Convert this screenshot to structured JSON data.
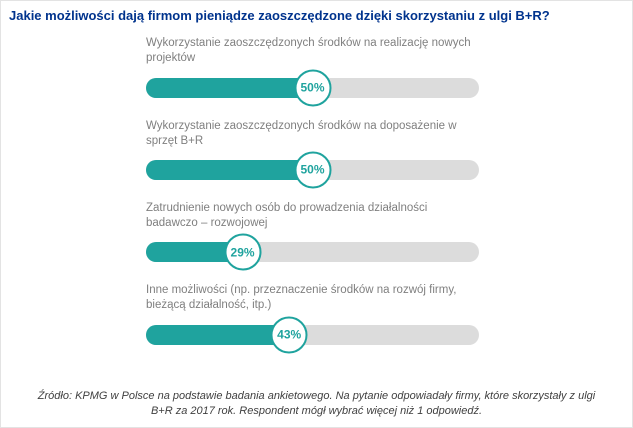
{
  "header": {
    "title": "Jakie możliwości dają firmom pieniądze zaoszczędzone dzięki skorzystaniu z ulgi B+R?"
  },
  "chart_data": {
    "type": "bar",
    "orientation": "horizontal",
    "title": "Jakie możliwości dają firmom pieniądze zaoszczędzone dzięki skorzystaniu z ulgi B+R?",
    "xlim": [
      0,
      100
    ],
    "grid": false,
    "legend": "none",
    "colors": {
      "bar": "#1FA39E",
      "track": "#DCDCDC",
      "title": "#00338D",
      "label": "#7F7F7F"
    },
    "categories": [
      "Wykorzystanie zaoszczędzonych środków na realizację nowych projektów",
      "Wykorzystanie zaoszczędzonych środków na doposażenie w sprzęt B+R",
      "Zatrudnienie nowych osób do prowadzenia działalności badawczo – rozwojowej",
      "Inne możliwości (np. przeznaczenie środków na rozwój firmy, bieżącą działalność, itp.)"
    ],
    "values": [
      50,
      50,
      29,
      43
    ],
    "rows": [
      {
        "label": "Wykorzystanie zaoszczędzonych środków na realizację nowych projektów",
        "value": 50,
        "display": "50%"
      },
      {
        "label": "Wykorzystanie zaoszczędzonych środków na doposażenie w sprzęt B+R",
        "value": 50,
        "display": "50%"
      },
      {
        "label": "Zatrudnienie nowych osób do prowadzenia działalności badawczo – rozwojowej",
        "value": 29,
        "display": "29%"
      },
      {
        "label": "Inne możliwości (np. przeznaczenie środków na rozwój firmy, bieżącą działalność, itp.)",
        "value": 43,
        "display": "43%"
      }
    ]
  },
  "footer": {
    "source": "Źródło: KPMG w Polsce na podstawie badania ankietowego. Na pytanie odpowiadały firmy, które skorzystały z ulgi B+R za 2017 rok. Respondent mógł wybrać więcej niż 1 odpowiedź."
  }
}
